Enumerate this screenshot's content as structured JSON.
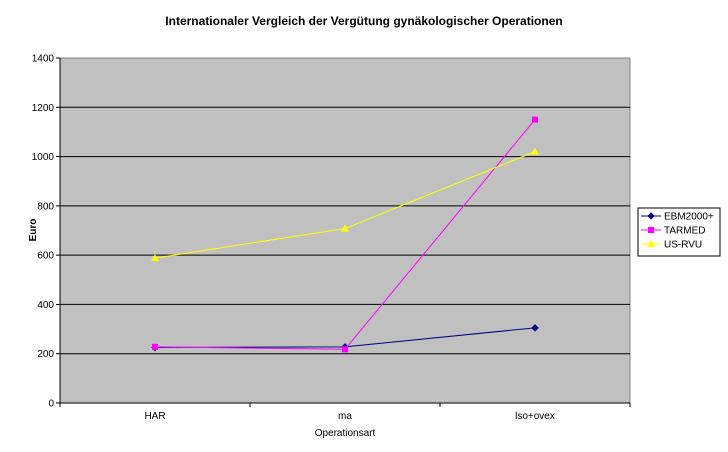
{
  "chart_data": {
    "type": "line",
    "title": "Internationaler Vergleich der Vergütung gynäkologischer Operationen",
    "xlabel": "Operationsart",
    "ylabel": "Euro",
    "categories": [
      "HAR",
      "ma",
      "lso+ovex"
    ],
    "ylim": [
      0,
      1400
    ],
    "yticks": [
      0,
      200,
      400,
      600,
      800,
      1000,
      1200,
      1400
    ],
    "grid": true,
    "legend_position": "right",
    "plot_background": "#C0C0C0",
    "series": [
      {
        "name": "EBM2000+",
        "values": [
          225,
          228,
          305
        ],
        "color": "#000080",
        "marker": "diamond"
      },
      {
        "name": "TARMED",
        "values": [
          228,
          218,
          1150
        ],
        "color": "#FF00FF",
        "marker": "square"
      },
      {
        "name": "US-RVU",
        "values": [
          588,
          708,
          1020
        ],
        "color": "#FFFF00",
        "marker": "triangle"
      }
    ]
  }
}
